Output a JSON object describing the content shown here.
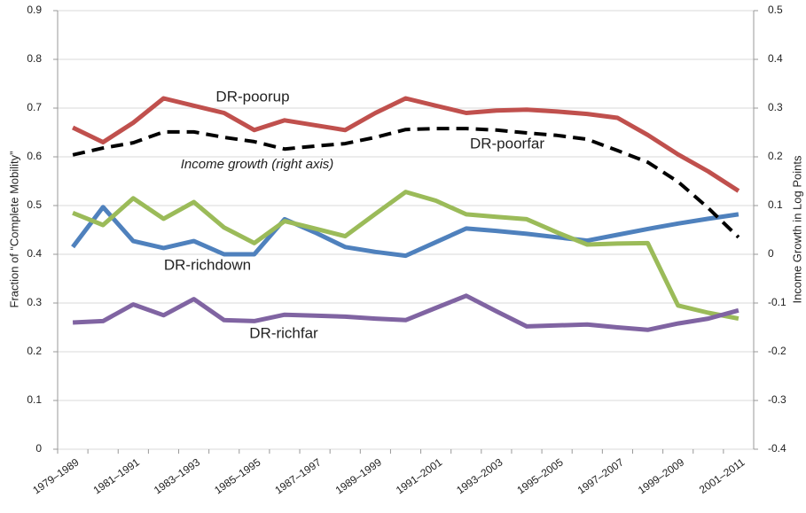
{
  "chart_data": {
    "type": "line",
    "ylabel": "Fraction of “Complete Mobility”",
    "y2label": "Income Growth in Log Points",
    "categories": [
      "1979–1989",
      null,
      "1981–1991",
      null,
      "1983–1993",
      null,
      "1985–1995",
      null,
      "1987–1997",
      null,
      "1989–1999",
      null,
      "1991–2001",
      null,
      "1993–2003",
      null,
      "1995–2005",
      null,
      "1997–2007",
      null,
      "1999–2009",
      null,
      "2001–2011"
    ],
    "ylim": [
      0,
      0.9
    ],
    "yticks": [
      0,
      0.1,
      0.2,
      0.3,
      0.4,
      0.5,
      0.6,
      0.7,
      0.8,
      0.9
    ],
    "y2lim": [
      -0.4,
      0.5
    ],
    "y2ticks": [
      -0.4,
      -0.3,
      -0.2,
      -0.1,
      0,
      0.1,
      0.2,
      0.3,
      0.4,
      0.5
    ],
    "grid": true,
    "series": [
      {
        "name": "DR-poorup",
        "color": "#c0504d",
        "values": [
          0.66,
          0.63,
          0.67,
          0.72,
          0.705,
          0.69,
          0.655,
          0.675,
          0.665,
          0.655,
          0.69,
          0.72,
          0.705,
          0.69,
          0.695,
          0.697,
          0.693,
          0.688,
          0.68,
          0.645,
          0.605,
          0.57,
          0.53
        ]
      },
      {
        "name": "DR-richdown",
        "color": "#4f81bd",
        "values": [
          0.415,
          0.497,
          0.427,
          0.413,
          0.427,
          0.4,
          0.4,
          0.472,
          0.445,
          0.415,
          0.405,
          0.397,
          0.425,
          0.453,
          0.448,
          0.442,
          0.435,
          0.428,
          0.44,
          0.452,
          0.463,
          0.473,
          0.482
        ]
      },
      {
        "name": "DR-poorfar",
        "color": "#9bbb59",
        "values": [
          0.485,
          0.46,
          0.515,
          0.473,
          0.507,
          0.455,
          0.423,
          0.468,
          0.453,
          0.437,
          0.483,
          0.528,
          0.51,
          0.482,
          0.477,
          0.472,
          0.445,
          0.42,
          0.422,
          0.423,
          0.295,
          0.28,
          0.268
        ]
      },
      {
        "name": "DR-richfar",
        "color": "#8064a2",
        "values": [
          0.26,
          0.263,
          0.297,
          0.275,
          0.308,
          0.265,
          0.263,
          0.276,
          0.274,
          0.272,
          0.268,
          0.265,
          0.29,
          0.315,
          0.283,
          0.252,
          0.254,
          0.256,
          0.25,
          0.245,
          0.258,
          0.268,
          0.285
        ]
      },
      {
        "name": "Income growth (right axis)",
        "color": "#000000",
        "dashed": true,
        "axis": "y2",
        "values": [
          0.204,
          0.218,
          0.229,
          0.251,
          0.251,
          0.24,
          0.231,
          0.216,
          0.222,
          0.227,
          0.24,
          0.256,
          0.258,
          0.258,
          0.255,
          0.249,
          0.244,
          0.236,
          0.213,
          0.189,
          0.149,
          0.095,
          0.035
        ]
      }
    ]
  }
}
